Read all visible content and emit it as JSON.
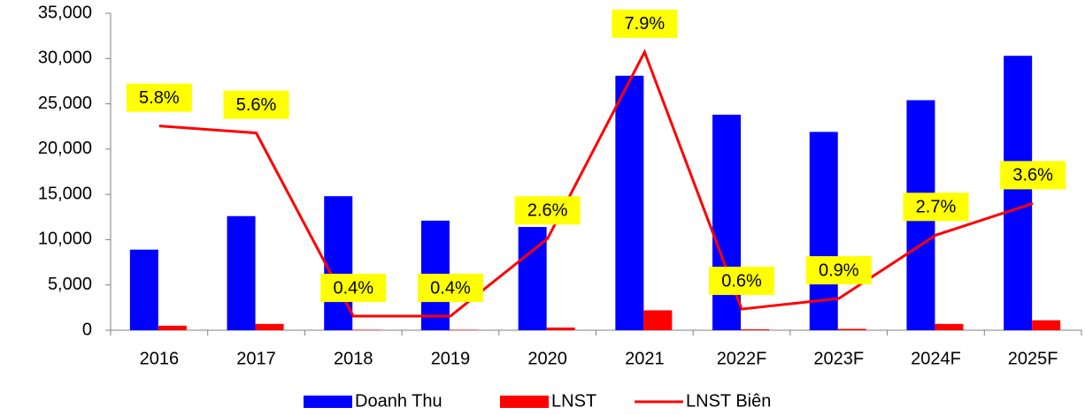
{
  "chart_data": {
    "type": "bar_line",
    "categories": [
      "2016",
      "2017",
      "2018",
      "2019",
      "2020",
      "2021",
      "2022F",
      "2023F",
      "2024F",
      "2025F"
    ],
    "series": [
      {
        "name": "Doanh Thu",
        "color": "#0000ff",
        "type": "bar",
        "values": [
          8900,
          12600,
          14800,
          12100,
          11400,
          28100,
          23800,
          21900,
          25400,
          30300
        ]
      },
      {
        "name": "LNST",
        "color": "#ff0000",
        "type": "bar",
        "values": [
          500,
          700,
          50,
          50,
          300,
          2200,
          100,
          150,
          700,
          1100
        ]
      },
      {
        "name": "LNST Biên",
        "color": "#ff0000",
        "type": "line",
        "axis": "y2",
        "values": [
          5.8,
          5.6,
          0.4,
          0.4,
          2.6,
          7.9,
          0.6,
          0.9,
          2.7,
          3.6
        ],
        "value_labels": [
          "5.8%",
          "5.6%",
          "0.4%",
          "0.4%",
          "2.6%",
          "7.9%",
          "0.6%",
          "0.9%",
          "2.7%",
          "3.6%"
        ]
      }
    ],
    "ylim": [
      0,
      35000
    ],
    "yticks": [
      0,
      {
        "value": 5000,
        "label": "5,000"
      },
      {
        "value": 10000,
        "label": "10,000"
      },
      {
        "value": 15000,
        "label": "15,000"
      },
      {
        "value": 20000,
        "label": "20,000"
      },
      {
        "value": 25000,
        "label": "25,000"
      },
      {
        "value": 30000,
        "label": "30,000"
      },
      {
        "value": 35000,
        "label": "35,000"
      }
    ],
    "y2lim": [
      0,
      9
    ],
    "grid": false,
    "legend": "bottom"
  }
}
